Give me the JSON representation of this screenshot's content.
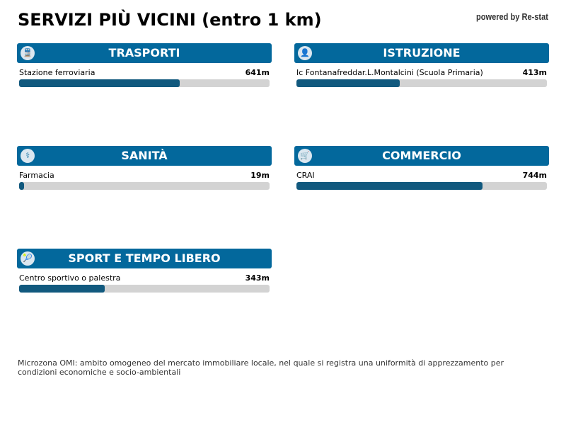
{
  "title": "SERVIZI PIÙ VICINI (entro 1 km)",
  "powered": "powered by Re-stat",
  "colors": {
    "header": "#03689c",
    "bar_fill": "#11597e",
    "bar_track": "#d3d3d3"
  },
  "categories": [
    {
      "title": "TRASPORTI",
      "icon": "train-icon",
      "item": "Stazione ferroviaria",
      "distance": "641m",
      "fraction": 0.641
    },
    {
      "title": "ISTRUZIONE",
      "icon": "student-icon",
      "item": "Ic Fontanafreddar.L.Montalcini (Scuola Primaria)",
      "distance": "413m",
      "fraction": 0.413
    },
    {
      "title": "SANITÀ",
      "icon": "pharmacy-icon",
      "item": "Farmacia",
      "distance": "19m",
      "fraction": 0.019
    },
    {
      "title": "COMMERCIO",
      "icon": "cart-icon",
      "item": "CRAI",
      "distance": "744m",
      "fraction": 0.744
    },
    {
      "title": "SPORT E TEMPO LIBERO",
      "icon": "tennis-icon",
      "item": "Centro sportivo o palestra",
      "distance": "343m",
      "fraction": 0.343
    }
  ],
  "note": "Microzona OMI: ambito omogeneo del mercato immobiliare locale, nel quale si registra una uniformità di apprezzamento per condizioni economiche e socio-ambientali"
}
